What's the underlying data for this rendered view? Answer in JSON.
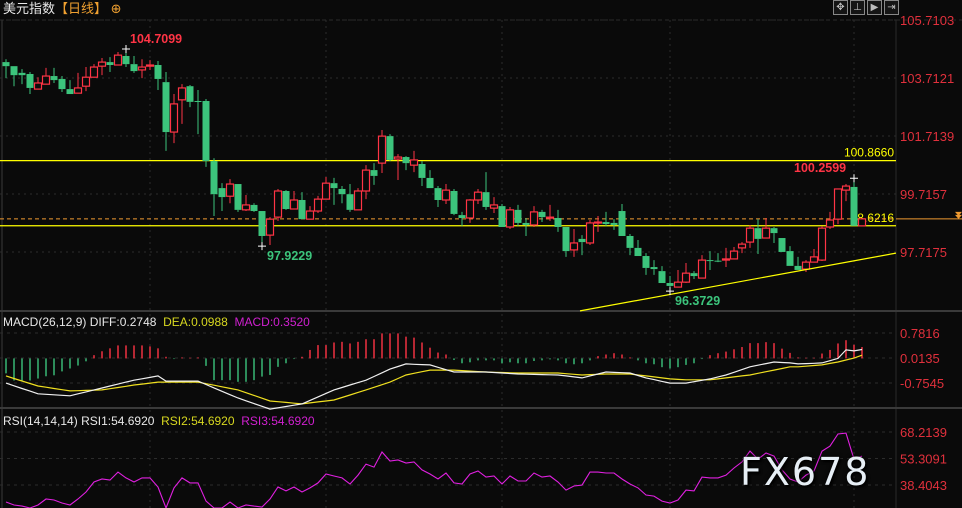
{
  "header": {
    "title": "美元指数",
    "period": "【日线】",
    "toggle_icon": "circle-plus-icon",
    "tools": [
      "crosshair-icon",
      "zoom-range-icon",
      "play-icon",
      "scroll-end-icon"
    ]
  },
  "colors": {
    "up": "#ff3445",
    "down": "#3cc47c",
    "axis_text": "#e0303c",
    "diff": "#f0f0f0",
    "dea": "#f0e020",
    "rsi": "#e020e0",
    "level": "#ffff00",
    "last_price": "#f09a30"
  },
  "chart_data": [
    {
      "type": "candlestick",
      "title": "美元指数【日线】",
      "y_ticks": [
        "105.7103",
        "103.7121",
        "101.7139",
        "99.7157",
        "97.7175"
      ],
      "ylim": [
        95.5,
        106.4
      ],
      "candles_ohlc": [
        [
          104.26,
          104.36,
          103.71,
          104.12
        ],
        [
          104.12,
          104.12,
          103.43,
          103.81
        ],
        [
          103.89,
          104.02,
          103.5,
          103.81
        ],
        [
          103.85,
          103.92,
          103.16,
          103.37
        ],
        [
          103.33,
          103.74,
          103.33,
          103.54
        ],
        [
          103.5,
          104.06,
          103.5,
          103.78
        ],
        [
          103.78,
          104.06,
          103.54,
          103.64
        ],
        [
          103.68,
          103.78,
          103.23,
          103.33
        ],
        [
          103.33,
          103.64,
          103.16,
          103.16
        ],
        [
          103.19,
          103.89,
          103.19,
          103.37
        ],
        [
          103.43,
          104.09,
          103.26,
          103.74
        ],
        [
          103.74,
          104.19,
          103.74,
          104.09
        ],
        [
          104.12,
          104.4,
          103.81,
          104.26
        ],
        [
          104.26,
          104.43,
          103.92,
          104.16
        ],
        [
          104.16,
          104.61,
          104.16,
          104.5
        ],
        [
          104.47,
          104.7099,
          104.09,
          104.19
        ],
        [
          104.19,
          104.47,
          103.89,
          103.95
        ],
        [
          103.99,
          104.36,
          103.71,
          104.09
        ],
        [
          104.12,
          104.33,
          103.99,
          104.16
        ],
        [
          104.16,
          104.3,
          103.3,
          103.68
        ],
        [
          103.57,
          103.92,
          101.2,
          101.85
        ],
        [
          101.85,
          103.16,
          101.47,
          102.82
        ],
        [
          102.96,
          103.5,
          102.13,
          103.37
        ],
        [
          103.43,
          103.47,
          102.71,
          102.89
        ],
        [
          102.92,
          103.3,
          101.78,
          102.89
        ],
        [
          102.92,
          102.99,
          100.65,
          100.85
        ],
        [
          100.85,
          100.95,
          98.96,
          99.71
        ],
        [
          99.92,
          100.09,
          99.13,
          99.61
        ],
        [
          99.64,
          100.23,
          99.4,
          100.06
        ],
        [
          100.06,
          100.06,
          99.1,
          99.17
        ],
        [
          99.17,
          99.68,
          99.13,
          99.34
        ],
        [
          99.34,
          99.4,
          99.1,
          99.13
        ],
        [
          99.13,
          99.13,
          97.9229,
          98.27
        ],
        [
          98.3,
          98.92,
          97.96,
          98.85
        ],
        [
          98.92,
          99.89,
          98.79,
          99.82
        ],
        [
          99.82,
          99.85,
          99.17,
          99.2
        ],
        [
          99.2,
          99.82,
          99.2,
          99.51
        ],
        [
          99.51,
          99.78,
          98.85,
          98.85
        ],
        [
          98.85,
          99.3,
          98.85,
          99.13
        ],
        [
          99.13,
          99.65,
          99.06,
          99.54
        ],
        [
          99.54,
          100.3,
          99.54,
          100.09
        ],
        [
          100.09,
          100.27,
          99.34,
          99.92
        ],
        [
          99.89,
          99.99,
          99.4,
          99.71
        ],
        [
          99.71,
          100.06,
          99.1,
          99.17
        ],
        [
          99.17,
          99.92,
          99.17,
          99.82
        ],
        [
          99.82,
          100.71,
          99.54,
          100.54
        ],
        [
          100.54,
          100.78,
          100.03,
          100.34
        ],
        [
          100.78,
          101.92,
          100.44,
          101.71
        ],
        [
          101.71,
          101.78,
          100.85,
          100.89
        ],
        [
          100.92,
          101.09,
          100.2,
          100.99
        ],
        [
          100.99,
          101.02,
          100.54,
          100.78
        ],
        [
          100.71,
          101.2,
          100.47,
          100.89
        ],
        [
          100.75,
          100.85,
          99.99,
          100.27
        ],
        [
          100.27,
          100.54,
          99.92,
          99.92
        ],
        [
          99.92,
          99.99,
          99.27,
          99.51
        ],
        [
          99.51,
          100.06,
          99.37,
          99.85
        ],
        [
          99.82,
          99.89,
          98.99,
          99.03
        ],
        [
          98.99,
          99.1,
          98.61,
          98.89
        ],
        [
          98.89,
          99.54,
          98.72,
          99.51
        ],
        [
          99.51,
          99.89,
          99.37,
          99.78
        ],
        [
          99.78,
          100.47,
          99.17,
          99.27
        ],
        [
          99.23,
          99.61,
          99.06,
          99.34
        ],
        [
          99.3,
          99.37,
          98.58,
          98.58
        ],
        [
          98.58,
          99.27,
          98.51,
          99.17
        ],
        [
          99.17,
          99.34,
          98.61,
          98.72
        ],
        [
          98.72,
          98.89,
          98.27,
          98.65
        ],
        [
          98.65,
          99.3,
          98.58,
          99.1
        ],
        [
          99.1,
          99.17,
          98.75,
          98.92
        ],
        [
          98.89,
          99.34,
          98.79,
          98.92
        ],
        [
          98.89,
          99.17,
          98.41,
          98.58
        ],
        [
          98.58,
          98.58,
          97.55,
          97.75
        ],
        [
          97.79,
          98.51,
          97.55,
          98.03
        ],
        [
          98.17,
          98.3,
          97.61,
          98.06
        ],
        [
          98.03,
          98.82,
          97.96,
          98.72
        ],
        [
          98.72,
          98.96,
          98.41,
          98.75
        ],
        [
          98.75,
          99.1,
          98.61,
          98.68
        ],
        [
          98.72,
          98.85,
          98.48,
          98.65
        ],
        [
          99.13,
          99.37,
          98.27,
          98.27
        ],
        [
          98.27,
          98.34,
          97.61,
          97.86
        ],
        [
          97.86,
          98.13,
          97.58,
          97.58
        ],
        [
          97.58,
          97.68,
          96.93,
          97.17
        ],
        [
          97.2,
          97.44,
          96.93,
          97.13
        ],
        [
          97.06,
          97.23,
          96.65,
          96.65
        ],
        [
          96.65,
          96.89,
          96.3729,
          96.55
        ],
        [
          96.51,
          97.1,
          96.51,
          96.68
        ],
        [
          96.68,
          97.34,
          96.65,
          96.99
        ],
        [
          96.99,
          97.06,
          96.79,
          96.89
        ],
        [
          96.82,
          97.61,
          96.82,
          97.44
        ],
        [
          97.44,
          97.75,
          97.1,
          97.41
        ],
        [
          97.42,
          97.68,
          97.37,
          97.4
        ],
        [
          97.44,
          97.86,
          97.2,
          97.48
        ],
        [
          97.48,
          97.89,
          97.48,
          97.75
        ],
        [
          97.86,
          98.06,
          97.68,
          97.99
        ],
        [
          98.06,
          98.65,
          97.86,
          98.54
        ],
        [
          98.54,
          98.85,
          97.65,
          98.17
        ],
        [
          98.2,
          98.89,
          98.2,
          98.54
        ],
        [
          98.54,
          98.58,
          98.03,
          98.37
        ],
        [
          98.2,
          98.2,
          97.72,
          97.72
        ],
        [
          97.75,
          97.92,
          97.24,
          97.24
        ],
        [
          97.24,
          97.55,
          97.1,
          97.1
        ],
        [
          97.13,
          97.44,
          97.03,
          97.37
        ],
        [
          97.37,
          97.82,
          97.37,
          97.55
        ],
        [
          97.44,
          98.61,
          97.41,
          98.54
        ],
        [
          98.58,
          99.1,
          98.51,
          98.82
        ],
        [
          98.85,
          99.89,
          98.68,
          99.89
        ],
        [
          99.85,
          100.06,
          99.47,
          99.99
        ],
        [
          99.96,
          100.2599,
          98.62,
          98.62
        ],
        [
          98.62,
          98.88,
          98.6,
          98.86
        ]
      ],
      "annotations": [
        {
          "text": "104.7099",
          "bar": 16,
          "kind": "high",
          "color": "#ff3445"
        },
        {
          "text": "97.9229",
          "bar": 33,
          "kind": "low",
          "color": "#3cc47c"
        },
        {
          "text": "96.3729",
          "bar": 84,
          "kind": "low",
          "color": "#3cc47c"
        },
        {
          "text": "100.2599",
          "bar": 107,
          "kind": "high",
          "color": "#ff3445"
        }
      ],
      "horizontal_levels": [
        {
          "value": 100.866,
          "label": "100.8660"
        },
        {
          "value": 98.6216,
          "label": "98.6216"
        }
      ],
      "last_price": 98.86,
      "trendline": {
        "from": [
          72.75,
          95.69
        ],
        "to": [
          112.25,
          97.68
        ]
      }
    },
    {
      "type": "macd",
      "legend": {
        "name": "MACD(26,12,9)",
        "diff": "DIFF:0.2748",
        "dea": "DEA:0.0988",
        "macd": "MACD:0.3520"
      },
      "y_ticks": [
        "0.7816",
        "0.0135",
        "-0.7545"
      ],
      "histogram": [
        -0.46,
        -0.68,
        -0.68,
        -0.68,
        -0.62,
        -0.55,
        -0.52,
        -0.4,
        -0.31,
        -0.22,
        -0.09,
        0.1,
        0.22,
        0.31,
        0.4,
        0.4,
        0.4,
        0.4,
        0.37,
        0.31,
        0.05,
        -0.02,
        0.03,
        0.02,
        0.03,
        -0.23,
        -0.67,
        -0.67,
        -0.67,
        -0.72,
        -0.72,
        -0.67,
        -0.56,
        -0.51,
        -0.26,
        -0.15,
        -0.02,
        0.05,
        0.26,
        0.41,
        0.41,
        0.49,
        0.51,
        0.46,
        0.51,
        0.59,
        0.59,
        0.77,
        0.77,
        0.77,
        0.67,
        0.64,
        0.49,
        0.33,
        0.18,
        0.12,
        -0.05,
        -0.15,
        -0.12,
        -0.06,
        -0.06,
        -0.06,
        -0.15,
        -0.12,
        -0.15,
        -0.15,
        -0.08,
        -0.06,
        -0.03,
        -0.06,
        -0.15,
        -0.18,
        -0.15,
        -0.06,
        0.07,
        0.12,
        0.16,
        0.12,
        0.03,
        -0.06,
        -0.15,
        -0.18,
        -0.27,
        -0.31,
        -0.27,
        -0.2,
        -0.15,
        -0.02,
        0.1,
        0.16,
        0.21,
        0.28,
        0.35,
        0.47,
        0.47,
        0.5,
        0.47,
        0.3,
        0.17,
        0.03,
        0.02,
        0.02,
        0.15,
        0.26,
        0.46,
        0.56,
        0.42,
        0.35
      ],
      "diff_points": [
        [
          1,
          -0.76
        ],
        [
          5,
          -1.09
        ],
        [
          9,
          -1.15
        ],
        [
          13,
          -0.91
        ],
        [
          17,
          -0.67
        ],
        [
          20,
          -0.54
        ],
        [
          21,
          -0.7
        ],
        [
          25,
          -0.7
        ],
        [
          30,
          -1.22
        ],
        [
          34,
          -1.56
        ],
        [
          38,
          -1.4
        ],
        [
          42,
          -0.97
        ],
        [
          46,
          -0.67
        ],
        [
          49,
          -0.33
        ],
        [
          51,
          -0.17
        ],
        [
          54,
          -0.2
        ],
        [
          57,
          -0.42
        ],
        [
          61,
          -0.42
        ],
        [
          65,
          -0.48
        ],
        [
          70,
          -0.51
        ],
        [
          73,
          -0.6
        ],
        [
          76,
          -0.42
        ],
        [
          79,
          -0.45
        ],
        [
          81,
          -0.6
        ],
        [
          84,
          -0.76
        ],
        [
          86,
          -0.76
        ],
        [
          89,
          -0.63
        ],
        [
          91,
          -0.51
        ],
        [
          94,
          -0.26
        ],
        [
          97,
          -0.11
        ],
        [
          99,
          -0.14
        ],
        [
          100,
          -0.17
        ],
        [
          103,
          -0.14
        ],
        [
          105,
          0.0
        ],
        [
          106,
          0.26
        ],
        [
          107,
          0.23
        ],
        [
          108,
          0.2748
        ]
      ],
      "dea_points": [
        [
          1,
          -0.54
        ],
        [
          5,
          -0.85
        ],
        [
          9,
          -1.0
        ],
        [
          13,
          -0.97
        ],
        [
          17,
          -0.82
        ],
        [
          20,
          -0.73
        ],
        [
          25,
          -0.73
        ],
        [
          30,
          -0.97
        ],
        [
          34,
          -1.31
        ],
        [
          38,
          -1.4
        ],
        [
          42,
          -1.28
        ],
        [
          46,
          -0.97
        ],
        [
          49,
          -0.73
        ],
        [
          51,
          -0.51
        ],
        [
          54,
          -0.36
        ],
        [
          57,
          -0.36
        ],
        [
          61,
          -0.42
        ],
        [
          65,
          -0.45
        ],
        [
          70,
          -0.45
        ],
        [
          73,
          -0.51
        ],
        [
          76,
          -0.48
        ],
        [
          79,
          -0.48
        ],
        [
          81,
          -0.54
        ],
        [
          84,
          -0.63
        ],
        [
          86,
          -0.66
        ],
        [
          89,
          -0.66
        ],
        [
          91,
          -0.6
        ],
        [
          94,
          -0.51
        ],
        [
          97,
          -0.36
        ],
        [
          99,
          -0.26
        ],
        [
          100,
          -0.26
        ],
        [
          103,
          -0.2
        ],
        [
          105,
          -0.11
        ],
        [
          106,
          -0.05
        ],
        [
          107,
          0.01
        ],
        [
          108,
          0.0988
        ]
      ]
    },
    {
      "type": "line",
      "legend": {
        "name": "RSI(14,14,14)",
        "rsi1": "RSI1:54.6920",
        "rsi2": "RSI2:54.6920",
        "rsi3": "RSI3:54.6920"
      },
      "y_ticks": [
        "68.2139",
        "53.3091",
        "38.4043"
      ],
      "values": [
        28.9,
        27.2,
        26.6,
        25.5,
        27.2,
        30.6,
        30.0,
        28.3,
        27.2,
        30.6,
        34.5,
        40.1,
        41.8,
        41.2,
        45.7,
        42.4,
        40.1,
        42.4,
        42.4,
        37.3,
        25.5,
        36.8,
        42.4,
        39.6,
        39.6,
        29.4,
        25.5,
        25.5,
        28.9,
        25.5,
        27.2,
        26.6,
        26.1,
        30.6,
        37.3,
        35.1,
        37.3,
        34.5,
        36.8,
        39.6,
        44.6,
        43.5,
        42.4,
        39.0,
        44.0,
        50.2,
        48.5,
        57.0,
        51.9,
        52.5,
        50.8,
        51.4,
        46.9,
        44.6,
        41.8,
        45.2,
        39.6,
        39.0,
        44.6,
        46.3,
        42.9,
        43.5,
        39.0,
        43.5,
        40.7,
        40.7,
        45.2,
        42.9,
        43.5,
        40.1,
        35.6,
        37.9,
        38.4,
        45.7,
        45.7,
        45.2,
        45.2,
        41.8,
        39.0,
        36.8,
        32.8,
        32.2,
        29.4,
        28.3,
        30.0,
        35.6,
        35.1,
        42.9,
        42.4,
        42.4,
        44.0,
        48.0,
        51.4,
        57.5,
        53.0,
        56.4,
        54.7,
        46.9,
        41.8,
        40.1,
        44.0,
        46.3,
        57.5,
        60.3,
        67.1,
        67.6,
        53.0,
        54.692
      ]
    }
  ],
  "watermark": "FX678"
}
